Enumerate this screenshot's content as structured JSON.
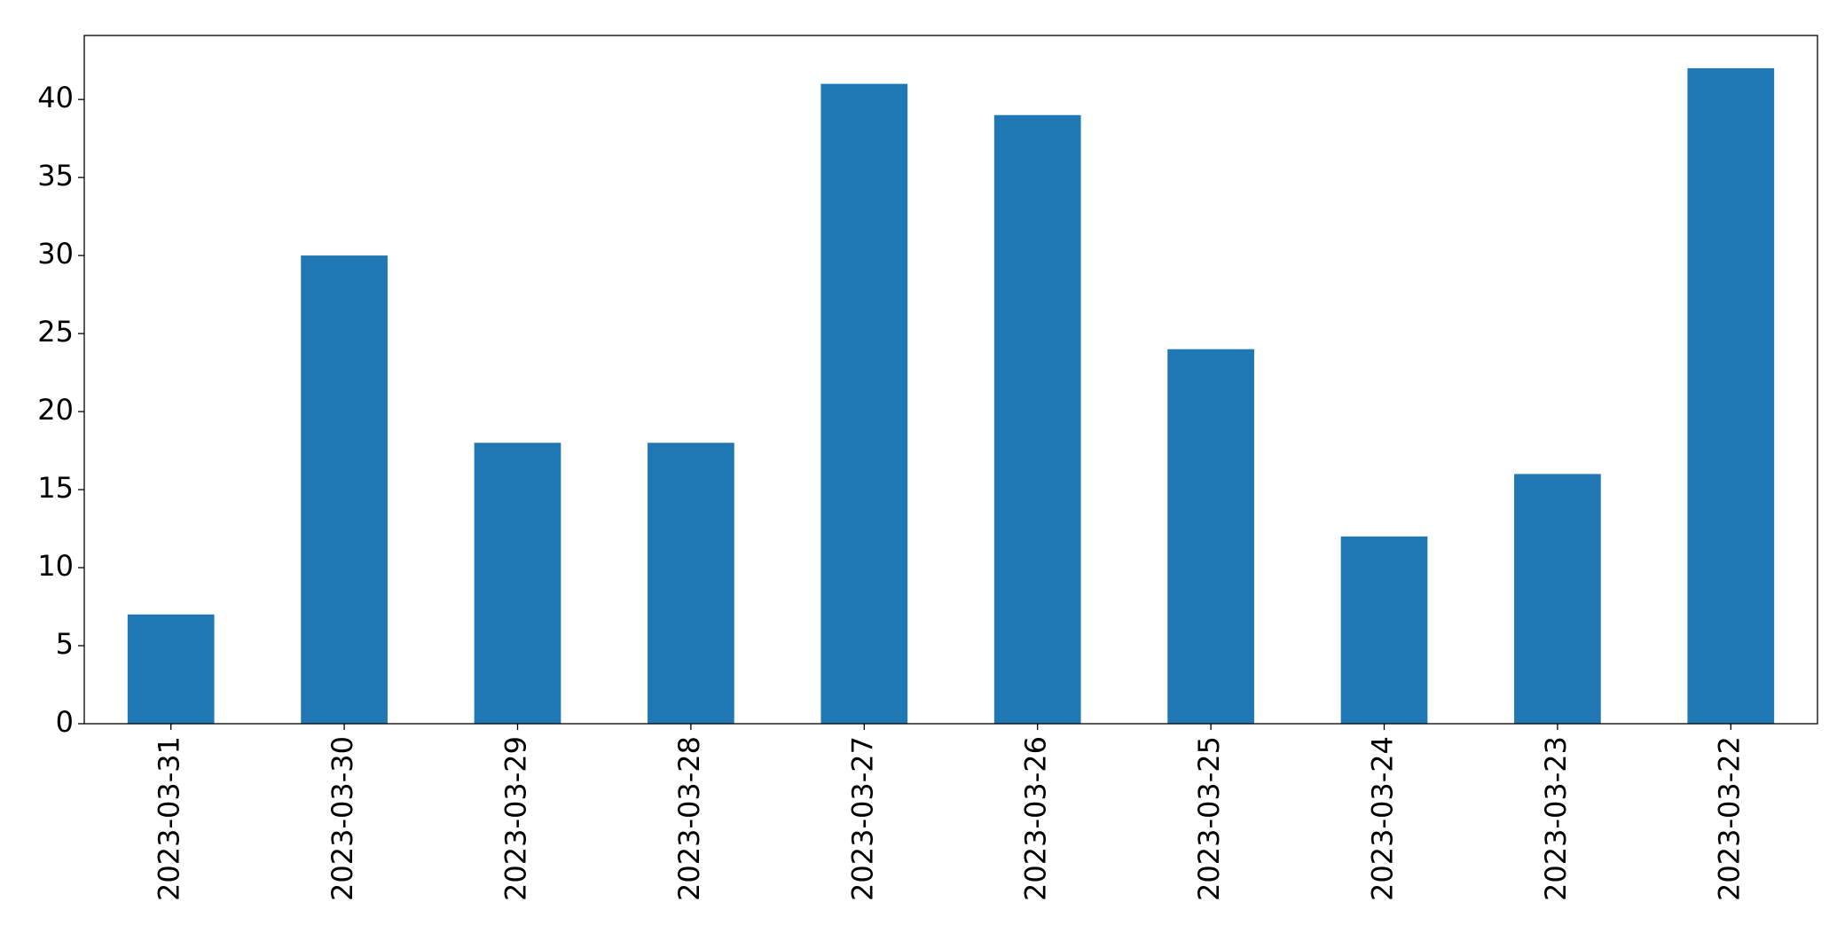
{
  "chart_data": {
    "type": "bar",
    "categories": [
      "2023-03-31",
      "2023-03-30",
      "2023-03-29",
      "2023-03-28",
      "2023-03-27",
      "2023-03-26",
      "2023-03-25",
      "2023-03-24",
      "2023-03-23",
      "2023-03-22"
    ],
    "values": [
      7,
      30,
      18,
      18,
      41,
      39,
      24,
      12,
      16,
      42
    ],
    "color": "#1f77b4",
    "ylim": [
      0,
      44.1
    ],
    "yticks": [
      0,
      5,
      10,
      15,
      20,
      25,
      30,
      35,
      40
    ],
    "grid": false
  }
}
